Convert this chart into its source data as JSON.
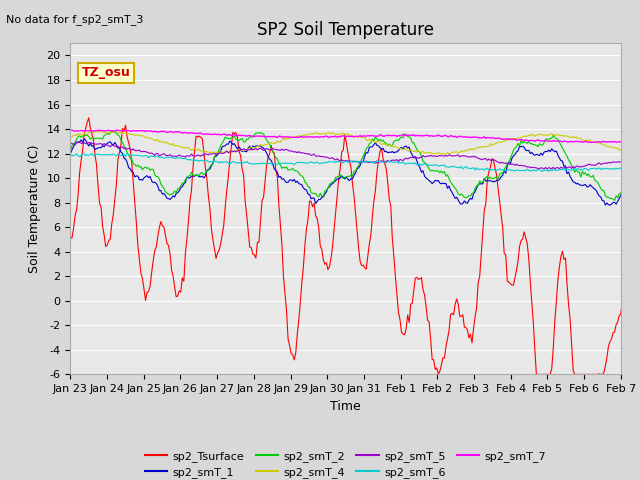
{
  "title": "SP2 Soil Temperature",
  "no_data_text": "No data for f_sp2_smT_3",
  "xlabel": "Time",
  "ylabel": "Soil Temperature (C)",
  "ylim": [
    -6,
    21
  ],
  "yticks": [
    -6,
    -4,
    -2,
    0,
    2,
    4,
    6,
    8,
    10,
    12,
    14,
    16,
    18,
    20
  ],
  "xtick_labels": [
    "Jan 23",
    "Jan 24",
    "Jan 25",
    "Jan 26",
    "Jan 27",
    "Jan 28",
    "Jan 29",
    "Jan 30",
    "Jan 31",
    "Feb 1",
    "Feb 2",
    "Feb 3",
    "Feb 4",
    "Feb 5",
    "Feb 6",
    "Feb 7"
  ],
  "timezone_label": "TZ_osu",
  "legend_entries": [
    {
      "label": "sp2_Tsurface",
      "color": "#ff0000"
    },
    {
      "label": "sp2_smT_1",
      "color": "#0000cc"
    },
    {
      "label": "sp2_smT_2",
      "color": "#00cc00"
    },
    {
      "label": "sp2_smT_4",
      "color": "#cccc00"
    },
    {
      "label": "sp2_smT_5",
      "color": "#9900cc"
    },
    {
      "label": "sp2_smT_6",
      "color": "#00cccc"
    },
    {
      "label": "sp2_smT_7",
      "color": "#ff00ff"
    }
  ],
  "title_fontsize": 12,
  "axis_fontsize": 9,
  "tick_fontsize": 8
}
